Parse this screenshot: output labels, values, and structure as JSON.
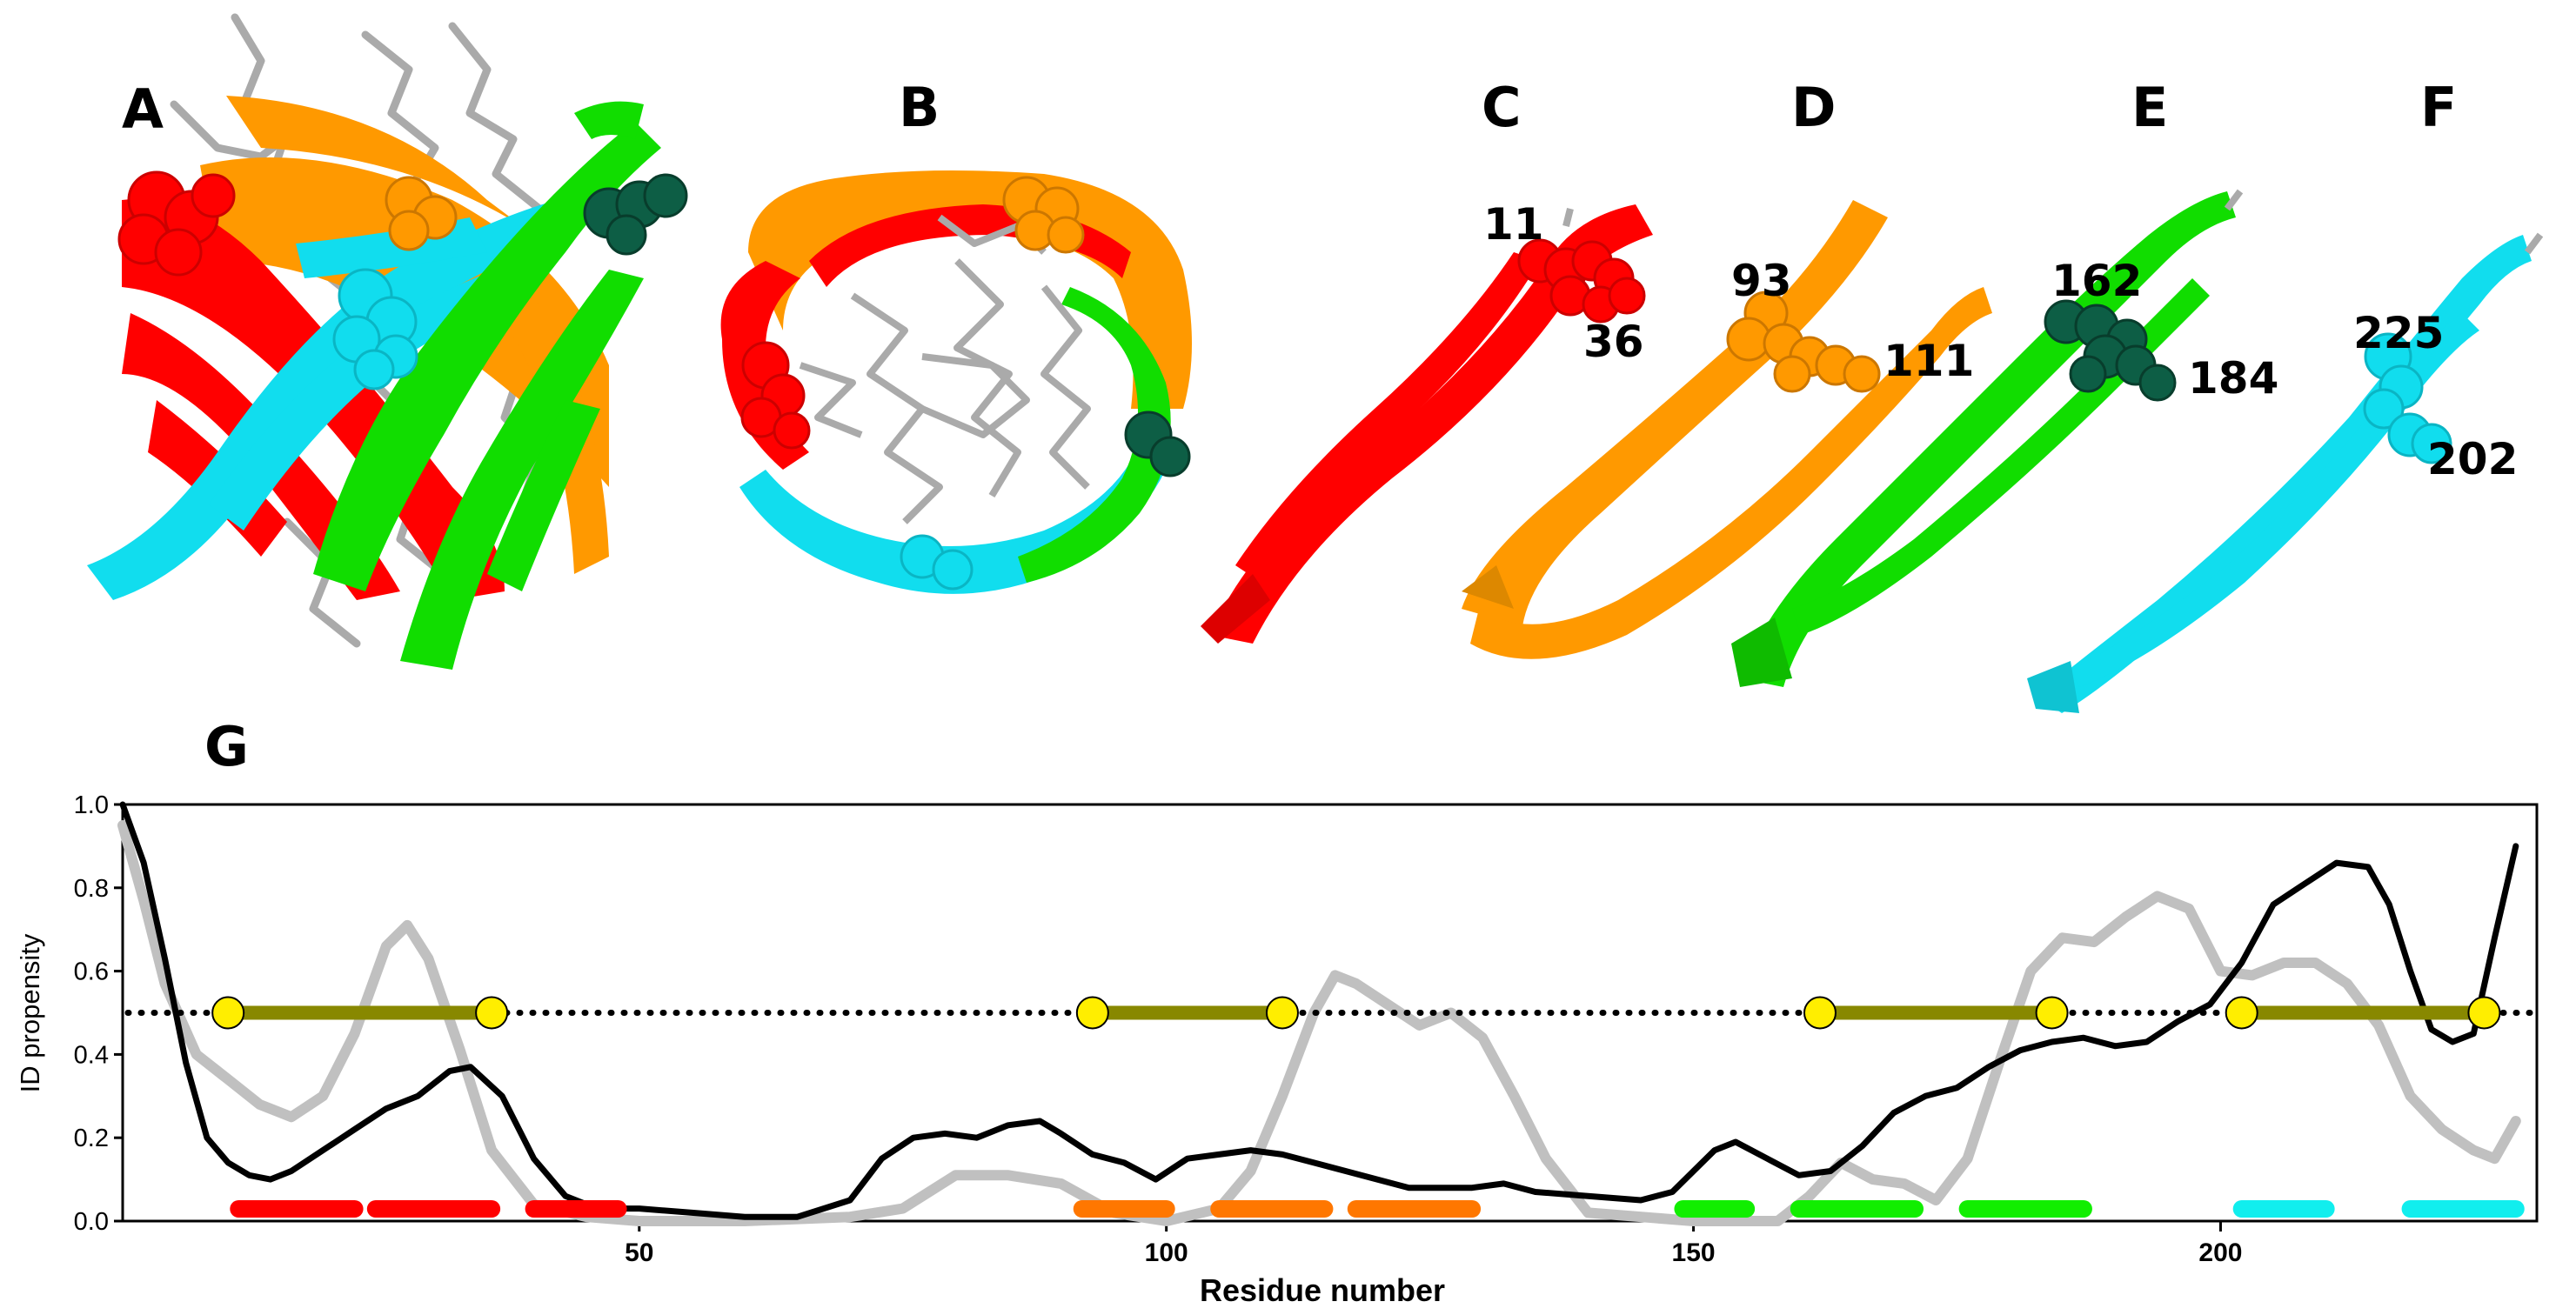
{
  "panels": {
    "letters": [
      "A",
      "B",
      "C",
      "D",
      "E",
      "F",
      "G"
    ],
    "residue_labels": [
      "11",
      "36",
      "93",
      "111",
      "162",
      "184",
      "225",
      "202"
    ]
  },
  "colors": {
    "red": "#ff0000",
    "orange": "#ff9900",
    "green": "#11dd00",
    "cyan": "#11ddee",
    "dark_green": "#0d5e45",
    "backbone_gray": "#aaaaaa",
    "olive": "#888800",
    "yellow": "#ffee00"
  },
  "chart_data": {
    "type": "line",
    "xlabel": "Residue number",
    "ylabel": "ID propensity",
    "xlim": [
      1,
      230
    ],
    "ylim": [
      0,
      1.0
    ],
    "xticks": [
      50,
      100,
      150,
      200
    ],
    "yticks": [
      "0.0",
      "0.2",
      "0.4",
      "0.6",
      "0.8",
      "1.0"
    ],
    "threshold": 0.5,
    "series": [
      {
        "color": "#000000",
        "x": [
          1,
          3,
          5,
          7,
          9,
          11,
          13,
          15,
          17,
          20,
          23,
          26,
          29,
          32,
          34,
          37,
          40,
          43,
          46,
          50,
          55,
          60,
          65,
          70,
          73,
          76,
          79,
          82,
          85,
          88,
          90,
          93,
          96,
          99,
          102,
          105,
          108,
          111,
          114,
          117,
          120,
          123,
          126,
          129,
          132,
          135,
          140,
          145,
          148,
          150,
          152,
          154,
          157,
          160,
          163,
          166,
          169,
          172,
          175,
          178,
          181,
          184,
          187,
          190,
          193,
          196,
          199,
          202,
          205,
          208,
          211,
          214,
          216,
          218,
          220,
          222,
          224,
          226,
          228
        ],
        "y": [
          1.0,
          0.86,
          0.63,
          0.38,
          0.2,
          0.14,
          0.11,
          0.1,
          0.12,
          0.17,
          0.22,
          0.27,
          0.3,
          0.36,
          0.37,
          0.3,
          0.15,
          0.06,
          0.03,
          0.03,
          0.02,
          0.01,
          0.01,
          0.05,
          0.15,
          0.2,
          0.21,
          0.2,
          0.23,
          0.24,
          0.21,
          0.16,
          0.14,
          0.1,
          0.15,
          0.16,
          0.17,
          0.16,
          0.14,
          0.12,
          0.1,
          0.08,
          0.08,
          0.08,
          0.09,
          0.07,
          0.06,
          0.05,
          0.07,
          0.12,
          0.17,
          0.19,
          0.15,
          0.11,
          0.12,
          0.18,
          0.26,
          0.3,
          0.32,
          0.37,
          0.41,
          0.43,
          0.44,
          0.42,
          0.43,
          0.48,
          0.52,
          0.62,
          0.76,
          0.81,
          0.86,
          0.85,
          0.76,
          0.6,
          0.46,
          0.43,
          0.45,
          0.68,
          0.9
        ]
      },
      {
        "color": "#c0c0c0",
        "x": [
          1,
          3,
          5,
          8,
          11,
          14,
          17,
          20,
          23,
          26,
          28,
          30,
          33,
          36,
          40,
          45,
          50,
          60,
          70,
          75,
          80,
          85,
          90,
          95,
          100,
          105,
          108,
          111,
          114,
          116,
          118,
          121,
          124,
          127,
          130,
          133,
          136,
          140,
          150,
          155,
          158,
          161,
          164,
          167,
          170,
          173,
          176,
          179,
          182,
          185,
          188,
          191,
          194,
          197,
          200,
          203,
          206,
          209,
          212,
          215,
          218,
          221,
          224,
          226,
          228
        ],
        "y": [
          0.95,
          0.77,
          0.57,
          0.4,
          0.34,
          0.28,
          0.25,
          0.3,
          0.45,
          0.66,
          0.71,
          0.63,
          0.41,
          0.17,
          0.04,
          0.01,
          0.0,
          0.0,
          0.01,
          0.03,
          0.11,
          0.11,
          0.09,
          0.02,
          0.0,
          0.03,
          0.12,
          0.3,
          0.5,
          0.59,
          0.57,
          0.52,
          0.47,
          0.5,
          0.44,
          0.3,
          0.15,
          0.02,
          0.0,
          0.0,
          0.0,
          0.06,
          0.14,
          0.1,
          0.09,
          0.05,
          0.15,
          0.38,
          0.6,
          0.68,
          0.67,
          0.73,
          0.78,
          0.75,
          0.6,
          0.59,
          0.62,
          0.62,
          0.57,
          0.47,
          0.3,
          0.22,
          0.17,
          0.15,
          0.24
        ]
      }
    ],
    "segments": [
      {
        "x1": 11,
        "x2": 36,
        "y": 0.5
      },
      {
        "x1": 93,
        "x2": 111,
        "y": 0.5
      },
      {
        "x1": 162,
        "x2": 184,
        "y": 0.5
      },
      {
        "x1": 202,
        "x2": 225,
        "y": 0.5
      }
    ],
    "strands": [
      {
        "x1": 12,
        "x2": 23,
        "color": "#ff0000"
      },
      {
        "x1": 25,
        "x2": 36,
        "color": "#ff0000"
      },
      {
        "x1": 40,
        "x2": 48,
        "color": "#ff0000"
      },
      {
        "x1": 92,
        "x2": 100,
        "color": "#ff7700"
      },
      {
        "x1": 105,
        "x2": 115,
        "color": "#ff7700"
      },
      {
        "x1": 118,
        "x2": 129,
        "color": "#ff7700"
      },
      {
        "x1": 149,
        "x2": 155,
        "color": "#11ee00"
      },
      {
        "x1": 160,
        "x2": 171,
        "color": "#11ee00"
      },
      {
        "x1": 176,
        "x2": 187,
        "color": "#11ee00"
      },
      {
        "x1": 202,
        "x2": 210,
        "color": "#11eeee"
      },
      {
        "x1": 218,
        "x2": 228,
        "color": "#11eeee"
      }
    ]
  }
}
